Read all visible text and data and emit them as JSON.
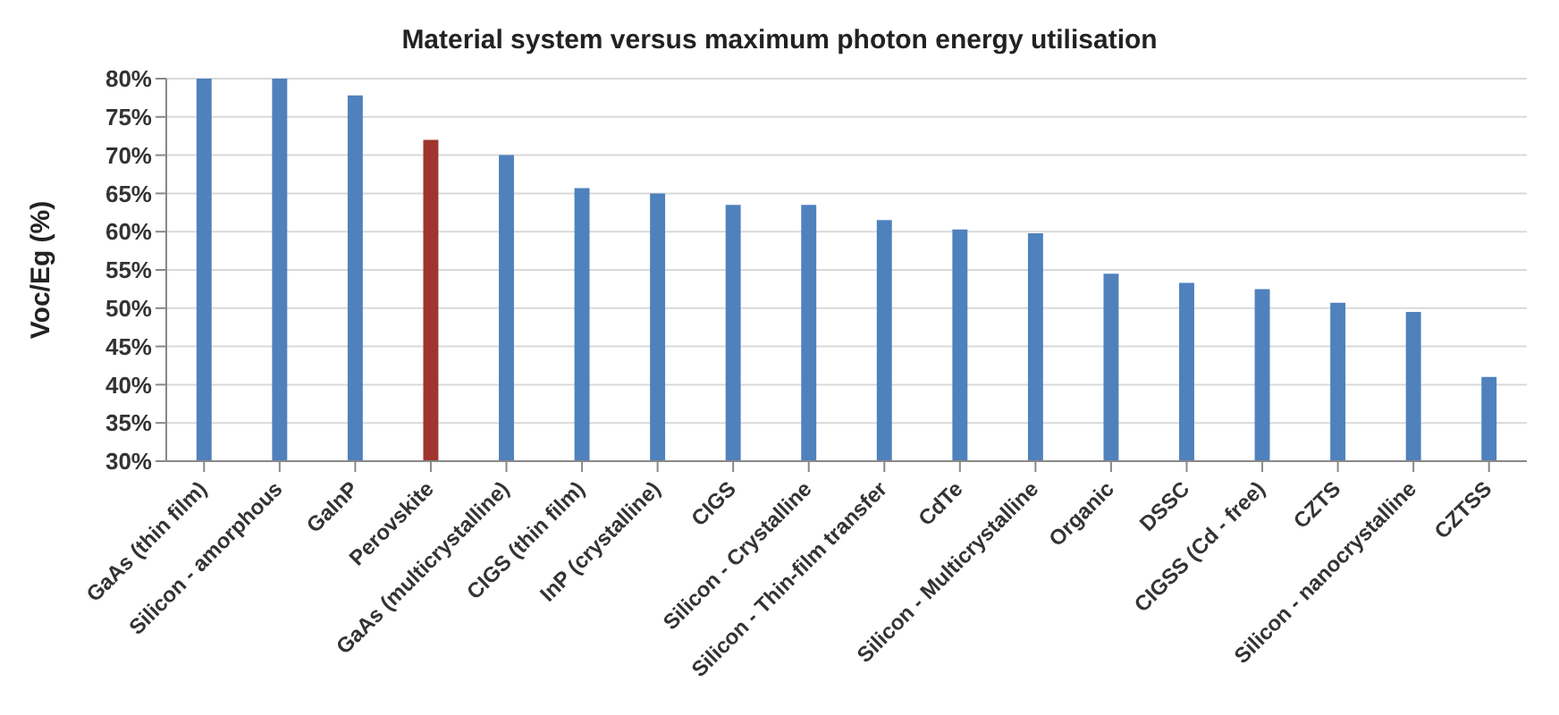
{
  "chart_data": {
    "type": "bar",
    "title": "Material system versus maximum photon energy utilisation",
    "ylabel": "Voc/Eg (%)",
    "categories": [
      "GaAs (thin film)",
      "Silicon - amorphous",
      "GaInP",
      "Perovskite",
      "GaAs (multicrystalline)",
      "CIGS (thin film)",
      "InP (crystalline)",
      "CIGS",
      "Silicon - Crystalline",
      "Silicon - Thin-film transfer",
      "CdTe",
      "Silicon - Multicrystalline",
      "Organic",
      "DSSC",
      "CIGSS (Cd - free)",
      "CZTS",
      "Silicon - nanocrystalline",
      "CZTSS"
    ],
    "values": [
      80,
      80,
      77.8,
      72,
      70,
      65.7,
      65,
      63.5,
      63.5,
      61.5,
      60.3,
      59.8,
      54.5,
      53.3,
      52.5,
      50.7,
      49.5,
      41
    ],
    "colors": [
      "#4f81bd",
      "#4f81bd",
      "#4f81bd",
      "#a0352f",
      "#4f81bd",
      "#4f81bd",
      "#4f81bd",
      "#4f81bd",
      "#4f81bd",
      "#4f81bd",
      "#4f81bd",
      "#4f81bd",
      "#4f81bd",
      "#4f81bd",
      "#4f81bd",
      "#4f81bd",
      "#4f81bd",
      "#4f81bd"
    ],
    "ylim": [
      30,
      80
    ],
    "yticks": [
      {
        "value": 30,
        "label": "30%"
      },
      {
        "value": 35,
        "label": "35%"
      },
      {
        "value": 40,
        "label": "40%"
      },
      {
        "value": 45,
        "label": "45%"
      },
      {
        "value": 50,
        "label": "50%"
      },
      {
        "value": 55,
        "label": "55%"
      },
      {
        "value": 60,
        "label": "60%"
      },
      {
        "value": 65,
        "label": "65%"
      },
      {
        "value": 70,
        "label": "70%"
      },
      {
        "value": 75,
        "label": "75%"
      },
      {
        "value": 80,
        "label": "80%"
      }
    ],
    "grid": "y"
  }
}
